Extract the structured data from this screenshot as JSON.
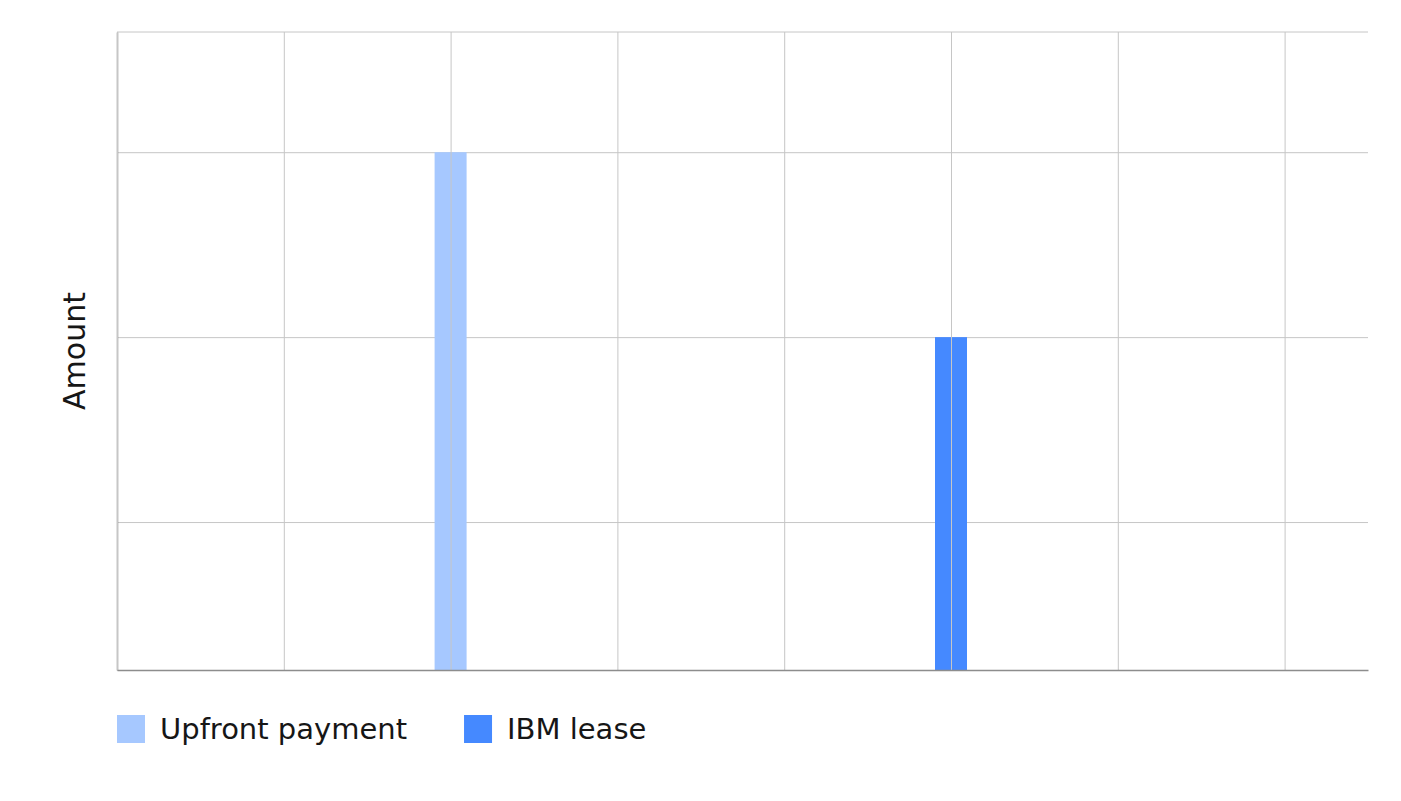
{
  "chart_data": {
    "type": "bar",
    "y_label": "Amount",
    "series": [
      {
        "name": "Upfront payment",
        "color": "#a6c8ff",
        "x": [
          2
        ],
        "values": [
          2.8
        ]
      },
      {
        "name": "IBM lease",
        "color": "#4589ff",
        "x": [
          5
        ],
        "values": [
          1.8
        ]
      }
    ],
    "xlim": [
      0,
      7.5
    ],
    "xticks": [
      0,
      1,
      2,
      3,
      4,
      5,
      6,
      7
    ],
    "ylim": [
      0,
      3.45
    ],
    "yticks": [
      0.8,
      1.8,
      2.8
    ],
    "grid": true,
    "legend": "bottom",
    "tick_labels": false
  }
}
